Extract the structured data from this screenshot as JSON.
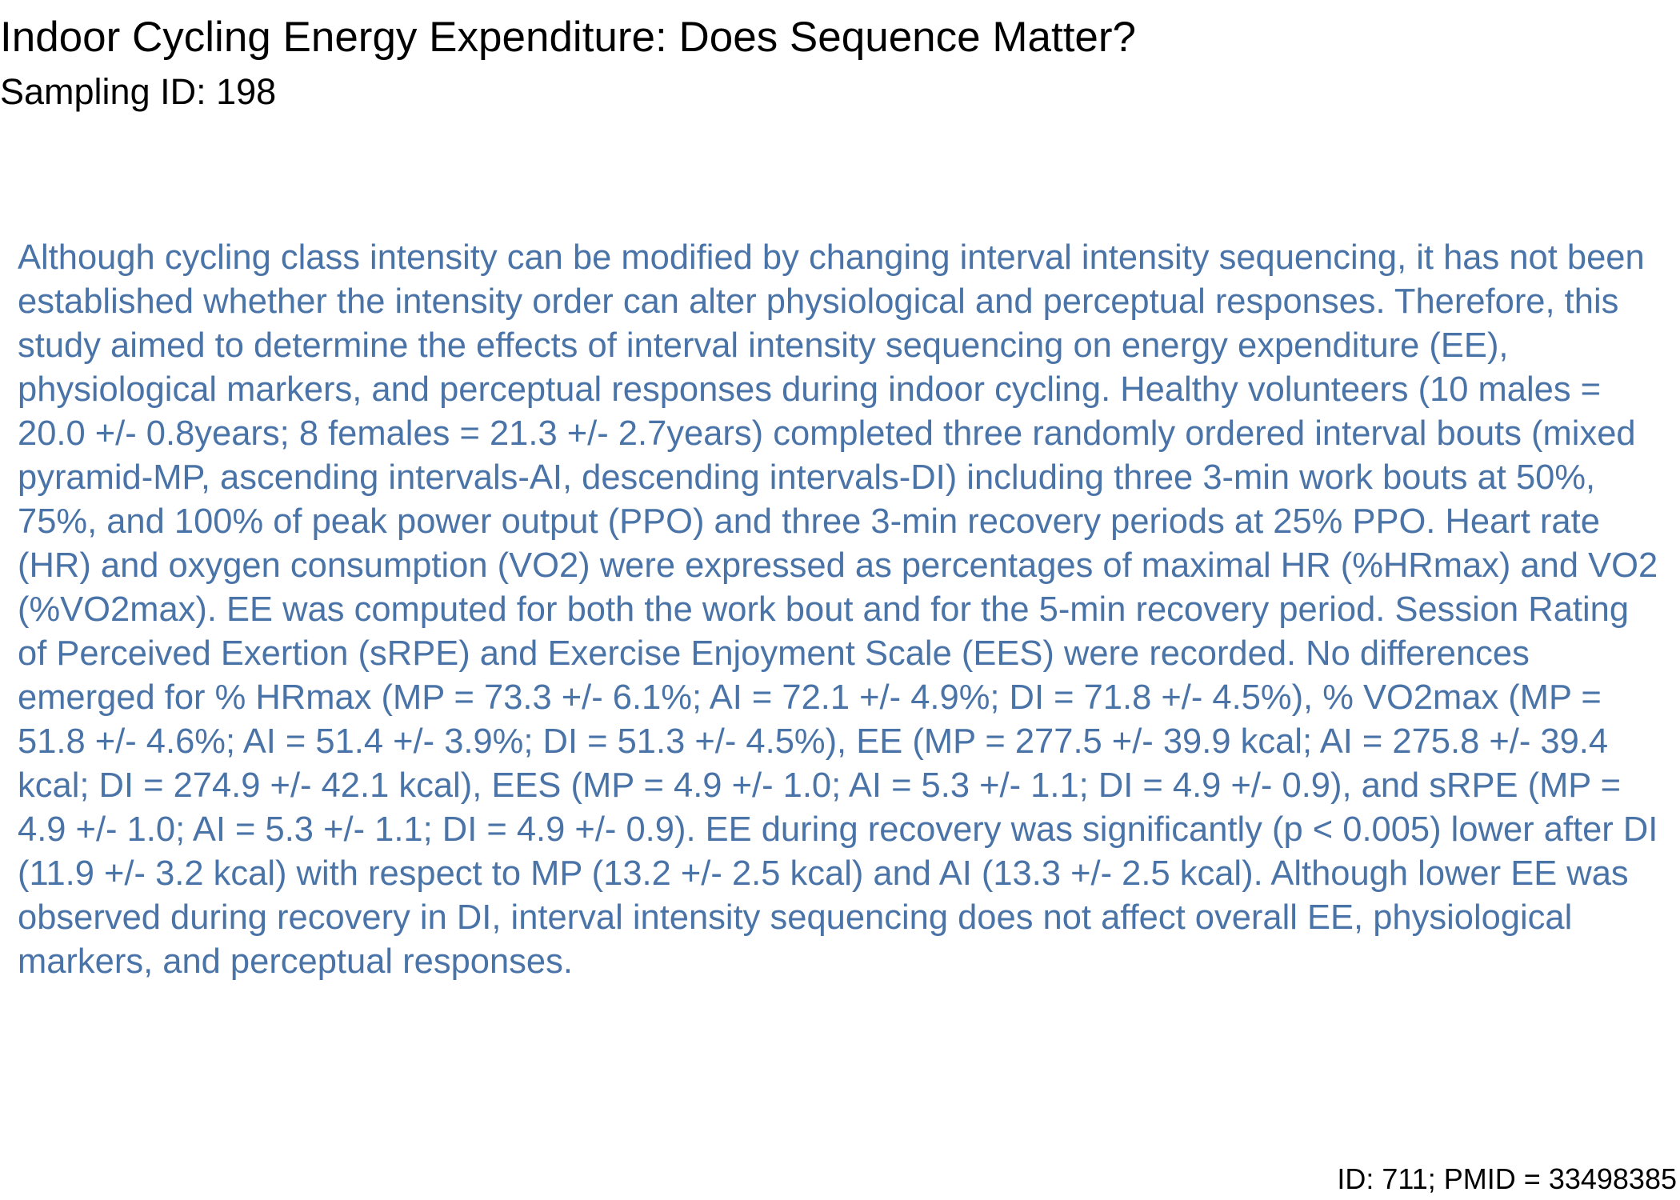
{
  "document": {
    "title": "Indoor Cycling Energy Expenditure: Does Sequence Matter?",
    "subtitle": "Sampling ID: 198",
    "abstract": "Although cycling class intensity can be modified by changing interval intensity sequencing, it has not been established whether the intensity order can alter physiological and perceptual responses. Therefore, this study aimed to determine the effects of interval intensity sequencing on energy expenditure (EE), physiological markers, and perceptual responses during indoor cycling. Healthy volunteers (10 males = 20.0 +/- 0.8years; 8 females = 21.3 +/- 2.7years) completed three randomly ordered interval bouts (mixed pyramid-MP, ascending intervals-AI, descending intervals-DI) including three 3-min work bouts at 50%, 75%, and 100% of peak power output (PPO) and three 3-min recovery periods at 25% PPO. Heart rate (HR) and oxygen consumption (VO2) were expressed as percentages of maximal HR (%HRmax) and VO2 (%VO2max). EE was computed for both the work bout and for the 5-min recovery period. Session Rating of Perceived Exertion (sRPE) and Exercise Enjoyment Scale (EES) were recorded. No differences emerged for % HRmax (MP = 73.3 +/- 6.1%; AI = 72.1 +/- 4.9%; DI = 71.8 +/- 4.5%), % VO2max (MP = 51.8 +/- 4.6%; AI = 51.4 +/- 3.9%; DI = 51.3 +/- 4.5%), EE (MP = 277.5 +/- 39.9 kcal; AI = 275.8 +/- 39.4 kcal; DI = 274.9 +/- 42.1 kcal), EES (MP = 4.9 +/- 1.0; AI = 5.3 +/- 1.1; DI = 4.9 +/- 0.9), and sRPE (MP = 4.9 +/- 1.0; AI = 5.3 +/- 1.1; DI = 4.9 +/- 0.9). EE during recovery was significantly (p < 0.005) lower after DI (11.9 +/- 3.2 kcal) with respect to MP (13.2 +/- 2.5 kcal) and AI (13.3 +/- 2.5 kcal). Although lower EE was observed during recovery in DI, interval intensity sequencing does not affect overall EE, physiological markers, and perceptual responses.",
    "footer": "ID: 711; PMID = 33498385"
  },
  "colors": {
    "title_text": "#000000",
    "abstract_text": "#4a74a8",
    "background": "#ffffff"
  }
}
